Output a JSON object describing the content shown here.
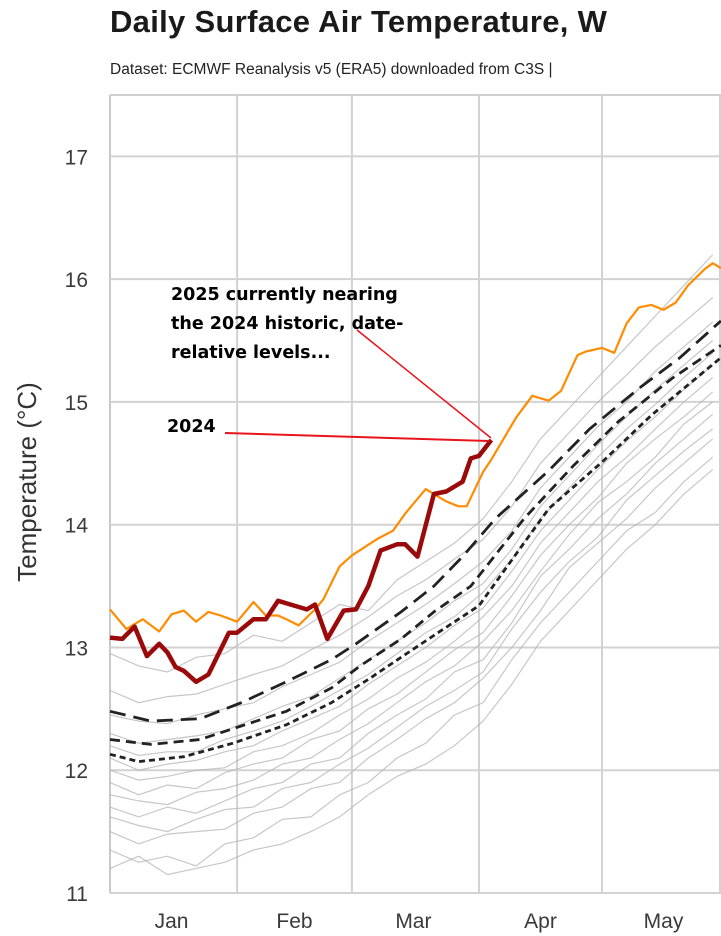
{
  "header": {
    "title": "Daily Surface Air Temperature, W",
    "subtitle": "Dataset: ECMWF Reanalysis v5 (ERA5) downloaded from C3S |"
  },
  "chart_data": {
    "type": "line",
    "title": "Daily Surface Air Temperature, W",
    "ylabel": "Temperature (°C)",
    "xlabel": "",
    "ylim": [
      11,
      17.5
    ],
    "yticks": [
      11,
      12,
      13,
      14,
      15,
      16,
      17
    ],
    "xlim": [
      "01-01",
      "05-30"
    ],
    "xtick_labels": [
      "Jan",
      "Feb",
      "Mar",
      "Apr",
      "May"
    ],
    "xgrid_dates": [
      "02-01",
      "03-01",
      "04-01",
      "05-01",
      "06-01"
    ],
    "grid": true,
    "colors": {
      "y2025": "#9b0a0a",
      "y2024": "#ff8c00",
      "other_years": "#b4b4b4",
      "means": "#222222",
      "annotation_arrow": "#e8141c"
    },
    "annotations": [
      {
        "lines": [
          "2025 currently nearing",
          "the 2024 historic, date-",
          "relative levels..."
        ],
        "points_to": [
          "04-04",
          14.69
        ]
      },
      {
        "lines": [
          "2024"
        ],
        "points_to": [
          "04-03",
          14.69
        ]
      }
    ],
    "other_years": {
      "x": [
        "01-01",
        "01-08",
        "01-15",
        "01-22",
        "01-29",
        "02-05",
        "02-12",
        "02-19",
        "02-26",
        "03-05",
        "03-12",
        "03-19",
        "03-26",
        "04-02",
        "04-09",
        "04-16",
        "04-23",
        "04-30",
        "05-07",
        "05-14",
        "05-21",
        "05-28"
      ],
      "series": [
        [
          11.35,
          11.25,
          11.3,
          11.22,
          11.4,
          11.45,
          11.6,
          11.62,
          11.8,
          11.9,
          12.1,
          12.22,
          12.45,
          12.55,
          12.9,
          13.2,
          13.45,
          13.7,
          13.95,
          14.1,
          14.35,
          14.55
        ],
        [
          11.5,
          11.4,
          11.48,
          11.5,
          11.52,
          11.65,
          11.7,
          11.85,
          11.9,
          12.1,
          12.25,
          12.42,
          12.55,
          12.75,
          13.0,
          13.3,
          13.65,
          13.85,
          14.05,
          14.3,
          14.5,
          14.7
        ],
        [
          11.62,
          11.55,
          11.5,
          11.6,
          11.68,
          11.7,
          11.85,
          11.9,
          12.05,
          12.18,
          12.35,
          12.52,
          12.65,
          12.8,
          13.15,
          13.45,
          13.7,
          13.9,
          14.2,
          14.4,
          14.6,
          14.78
        ],
        [
          11.7,
          11.62,
          11.7,
          11.65,
          11.75,
          11.85,
          11.9,
          12.05,
          12.1,
          12.3,
          12.45,
          12.58,
          12.8,
          12.9,
          13.2,
          13.58,
          13.8,
          14.05,
          14.25,
          14.5,
          14.7,
          14.9
        ],
        [
          11.8,
          11.75,
          11.72,
          11.82,
          11.85,
          11.92,
          12.05,
          12.1,
          12.25,
          12.38,
          12.55,
          12.72,
          12.85,
          13.05,
          13.3,
          13.62,
          13.92,
          14.18,
          14.35,
          14.55,
          14.82,
          15.0
        ],
        [
          11.9,
          11.8,
          11.88,
          11.85,
          11.98,
          12.05,
          12.1,
          12.25,
          12.32,
          12.5,
          12.62,
          12.8,
          12.98,
          13.12,
          13.42,
          13.75,
          14.0,
          14.22,
          14.5,
          14.7,
          14.88,
          15.08
        ],
        [
          12.0,
          11.92,
          11.95,
          12.0,
          12.02,
          12.15,
          12.2,
          12.3,
          12.45,
          12.58,
          12.75,
          12.88,
          13.05,
          13.25,
          13.5,
          13.85,
          14.1,
          14.35,
          14.55,
          14.78,
          15.0,
          15.2
        ],
        [
          12.1,
          12.0,
          12.05,
          12.08,
          12.15,
          12.2,
          12.32,
          12.42,
          12.52,
          12.7,
          12.85,
          13.0,
          13.18,
          13.32,
          13.62,
          13.95,
          14.2,
          14.45,
          14.68,
          14.88,
          15.1,
          15.3
        ],
        [
          12.2,
          12.12,
          12.15,
          12.15,
          12.25,
          12.32,
          12.4,
          12.52,
          12.65,
          12.78,
          12.95,
          13.12,
          13.25,
          13.45,
          13.72,
          14.05,
          14.3,
          14.55,
          14.78,
          14.98,
          15.2,
          15.4
        ],
        [
          12.3,
          12.22,
          12.25,
          12.28,
          12.32,
          12.42,
          12.52,
          12.6,
          12.75,
          12.9,
          13.05,
          13.2,
          13.38,
          13.52,
          13.8,
          14.15,
          14.4,
          14.65,
          14.88,
          15.1,
          15.3,
          15.5
        ],
        [
          12.45,
          12.4,
          12.38,
          12.45,
          12.5,
          12.55,
          12.68,
          12.78,
          12.88,
          13.05,
          13.2,
          13.35,
          13.52,
          13.7,
          13.95,
          14.3,
          14.55,
          14.8,
          15.0,
          15.25,
          15.45,
          15.65
        ],
        [
          12.65,
          12.55,
          12.6,
          12.62,
          12.7,
          12.78,
          12.85,
          12.98,
          13.1,
          13.25,
          13.42,
          13.55,
          13.72,
          13.88,
          14.15,
          14.5,
          14.75,
          15.0,
          15.22,
          15.45,
          15.65,
          15.85
        ],
        [
          12.95,
          12.85,
          12.8,
          12.92,
          12.95,
          13.1,
          13.05,
          13.2,
          13.35,
          13.3,
          13.55,
          13.7,
          13.85,
          14.05,
          14.35,
          14.7,
          14.95,
          15.2,
          15.45,
          15.7,
          15.95,
          16.2
        ],
        [
          11.2,
          11.3,
          11.15,
          11.2,
          11.25,
          11.35,
          11.4,
          11.5,
          11.62,
          11.8,
          11.95,
          12.05,
          12.2,
          12.4,
          12.7,
          13.05,
          13.3,
          13.55,
          13.8,
          14.0,
          14.25,
          14.45
        ]
      ]
    },
    "mean_lines": [
      {
        "style": "long-dash",
        "points": [
          [
            "01-01",
            12.48
          ],
          [
            "01-11",
            12.4
          ],
          [
            "01-23",
            12.42
          ],
          [
            "02-02",
            12.55
          ],
          [
            "02-13",
            12.72
          ],
          [
            "02-24",
            12.9
          ],
          [
            "03-02",
            13.03
          ],
          [
            "03-13",
            13.29
          ],
          [
            "03-21",
            13.5
          ],
          [
            "03-28",
            13.74
          ],
          [
            "04-05",
            14.05
          ],
          [
            "04-18",
            14.44
          ],
          [
            "04-28",
            14.78
          ],
          [
            "05-10",
            15.11
          ],
          [
            "05-20",
            15.36
          ],
          [
            "05-30",
            15.66
          ]
        ]
      },
      {
        "style": "medium-dash",
        "points": [
          [
            "01-01",
            12.25
          ],
          [
            "01-11",
            12.21
          ],
          [
            "01-23",
            12.25
          ],
          [
            "02-02",
            12.36
          ],
          [
            "02-13",
            12.48
          ],
          [
            "02-24",
            12.67
          ],
          [
            "03-03",
            12.85
          ],
          [
            "03-13",
            13.07
          ],
          [
            "03-21",
            13.29
          ],
          [
            "03-30",
            13.5
          ],
          [
            "04-12",
            14.05
          ],
          [
            "04-24",
            14.48
          ],
          [
            "05-05",
            14.84
          ],
          [
            "05-18",
            15.19
          ],
          [
            "05-30",
            15.46
          ]
        ]
      },
      {
        "style": "short-dash",
        "points": [
          [
            "01-01",
            12.13
          ],
          [
            "01-08",
            12.07
          ],
          [
            "01-19",
            12.11
          ],
          [
            "01-31",
            12.22
          ],
          [
            "02-13",
            12.37
          ],
          [
            "02-24",
            12.55
          ],
          [
            "03-05",
            12.74
          ],
          [
            "03-13",
            12.92
          ],
          [
            "03-22",
            13.12
          ],
          [
            "04-01",
            13.34
          ],
          [
            "04-18",
            14.13
          ],
          [
            "05-01",
            14.51
          ],
          [
            "05-13",
            14.89
          ],
          [
            "05-30",
            15.36
          ]
        ]
      }
    ],
    "series": [
      {
        "name": "2024",
        "points": [
          [
            "01-01",
            13.31
          ],
          [
            "01-05",
            13.15
          ],
          [
            "01-09",
            13.23
          ],
          [
            "01-13",
            13.13
          ],
          [
            "01-16",
            13.27
          ],
          [
            "01-19",
            13.3
          ],
          [
            "01-22",
            13.21
          ],
          [
            "01-25",
            13.29
          ],
          [
            "01-28",
            13.26
          ],
          [
            "02-01",
            13.21
          ],
          [
            "02-05",
            13.37
          ],
          [
            "02-08",
            13.26
          ],
          [
            "02-11",
            13.26
          ],
          [
            "02-13",
            13.23
          ],
          [
            "02-16",
            13.18
          ],
          [
            "02-20",
            13.31
          ],
          [
            "02-22",
            13.39
          ],
          [
            "02-26",
            13.66
          ],
          [
            "03-01",
            13.75
          ],
          [
            "03-07",
            13.88
          ],
          [
            "03-11",
            13.95
          ],
          [
            "03-14",
            14.09
          ],
          [
            "03-19",
            14.29
          ],
          [
            "03-24",
            14.19
          ],
          [
            "03-27",
            14.15
          ],
          [
            "03-29",
            14.15
          ],
          [
            "04-02",
            14.43
          ],
          [
            "04-04",
            14.53
          ],
          [
            "04-07",
            14.7
          ],
          [
            "04-10",
            14.87
          ],
          [
            "04-14",
            15.05
          ],
          [
            "04-18",
            15.01
          ],
          [
            "04-21",
            15.09
          ],
          [
            "04-25",
            15.38
          ],
          [
            "04-27",
            15.41
          ],
          [
            "05-01",
            15.44
          ],
          [
            "05-04",
            15.4
          ],
          [
            "05-07",
            15.64
          ],
          [
            "05-10",
            15.77
          ],
          [
            "05-13",
            15.79
          ],
          [
            "05-16",
            15.75
          ],
          [
            "05-19",
            15.81
          ],
          [
            "05-22",
            15.95
          ],
          [
            "05-26",
            16.08
          ],
          [
            "05-28",
            16.13
          ],
          [
            "05-30",
            16.09
          ]
        ]
      },
      {
        "name": "2025",
        "points": [
          [
            "01-01",
            13.08
          ],
          [
            "01-04",
            13.07
          ],
          [
            "01-07",
            13.17
          ],
          [
            "01-10",
            12.93
          ],
          [
            "01-13",
            13.03
          ],
          [
            "01-15",
            12.96
          ],
          [
            "01-17",
            12.84
          ],
          [
            "01-19",
            12.81
          ],
          [
            "01-22",
            12.72
          ],
          [
            "01-25",
            12.78
          ],
          [
            "01-30",
            13.12
          ],
          [
            "02-01",
            13.12
          ],
          [
            "02-05",
            13.23
          ],
          [
            "02-08",
            13.23
          ],
          [
            "02-11",
            13.38
          ],
          [
            "02-14",
            13.35
          ],
          [
            "02-18",
            13.31
          ],
          [
            "02-20",
            13.35
          ],
          [
            "02-23",
            13.07
          ],
          [
            "02-27",
            13.3
          ],
          [
            "03-02",
            13.31
          ],
          [
            "03-05",
            13.5
          ],
          [
            "03-08",
            13.79
          ],
          [
            "03-12",
            13.84
          ],
          [
            "03-14",
            13.84
          ],
          [
            "03-17",
            13.74
          ],
          [
            "03-21",
            14.25
          ],
          [
            "03-24",
            14.27
          ],
          [
            "03-28",
            14.35
          ],
          [
            "03-30",
            14.54
          ],
          [
            "04-01",
            14.56
          ],
          [
            "04-04",
            14.69
          ]
        ]
      }
    ]
  }
}
